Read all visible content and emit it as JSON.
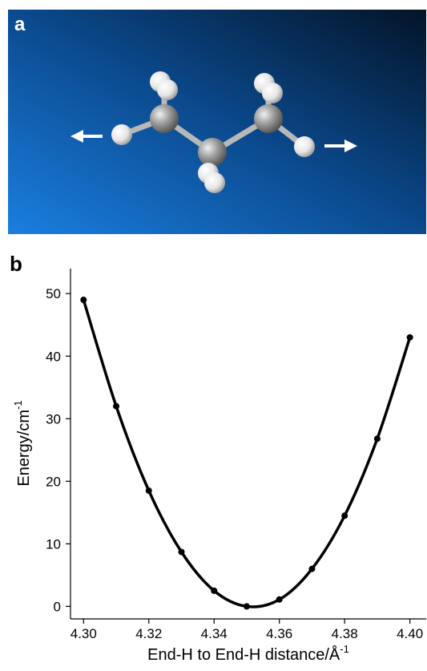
{
  "panel_labels": [
    "a",
    "b"
  ],
  "chart_data": {
    "type": "line",
    "xlabel": {
      "text": "End-H to End-H distance/Å",
      "sup": "-1"
    },
    "ylabel": {
      "text": "Energy/cm",
      "sup": "-1"
    },
    "x": [
      4.3,
      4.31,
      4.32,
      4.33,
      4.34,
      4.35,
      4.36,
      4.37,
      4.38,
      4.39,
      4.4
    ],
    "series": [
      {
        "color": "#000000",
        "values": [
          49,
          32,
          18.5,
          8.7,
          2.5,
          0,
          1.1,
          6,
          14.5,
          26.8,
          43
        ]
      }
    ],
    "smooth": true,
    "markers": true,
    "xlim": [
      4.296,
      4.405
    ],
    "ylim": [
      -2,
      54
    ],
    "xticks": [
      {
        "value": 4.3,
        "label": "4.30"
      },
      {
        "value": 4.32,
        "label": "4.32"
      },
      {
        "value": 4.34,
        "label": "4.34"
      },
      {
        "value": 4.36,
        "label": "4.36"
      },
      {
        "value": 4.38,
        "label": "4.38"
      },
      {
        "value": 4.4,
        "label": "4.40"
      }
    ],
    "yticks": [
      0,
      10,
      20,
      30,
      40,
      50
    ]
  }
}
